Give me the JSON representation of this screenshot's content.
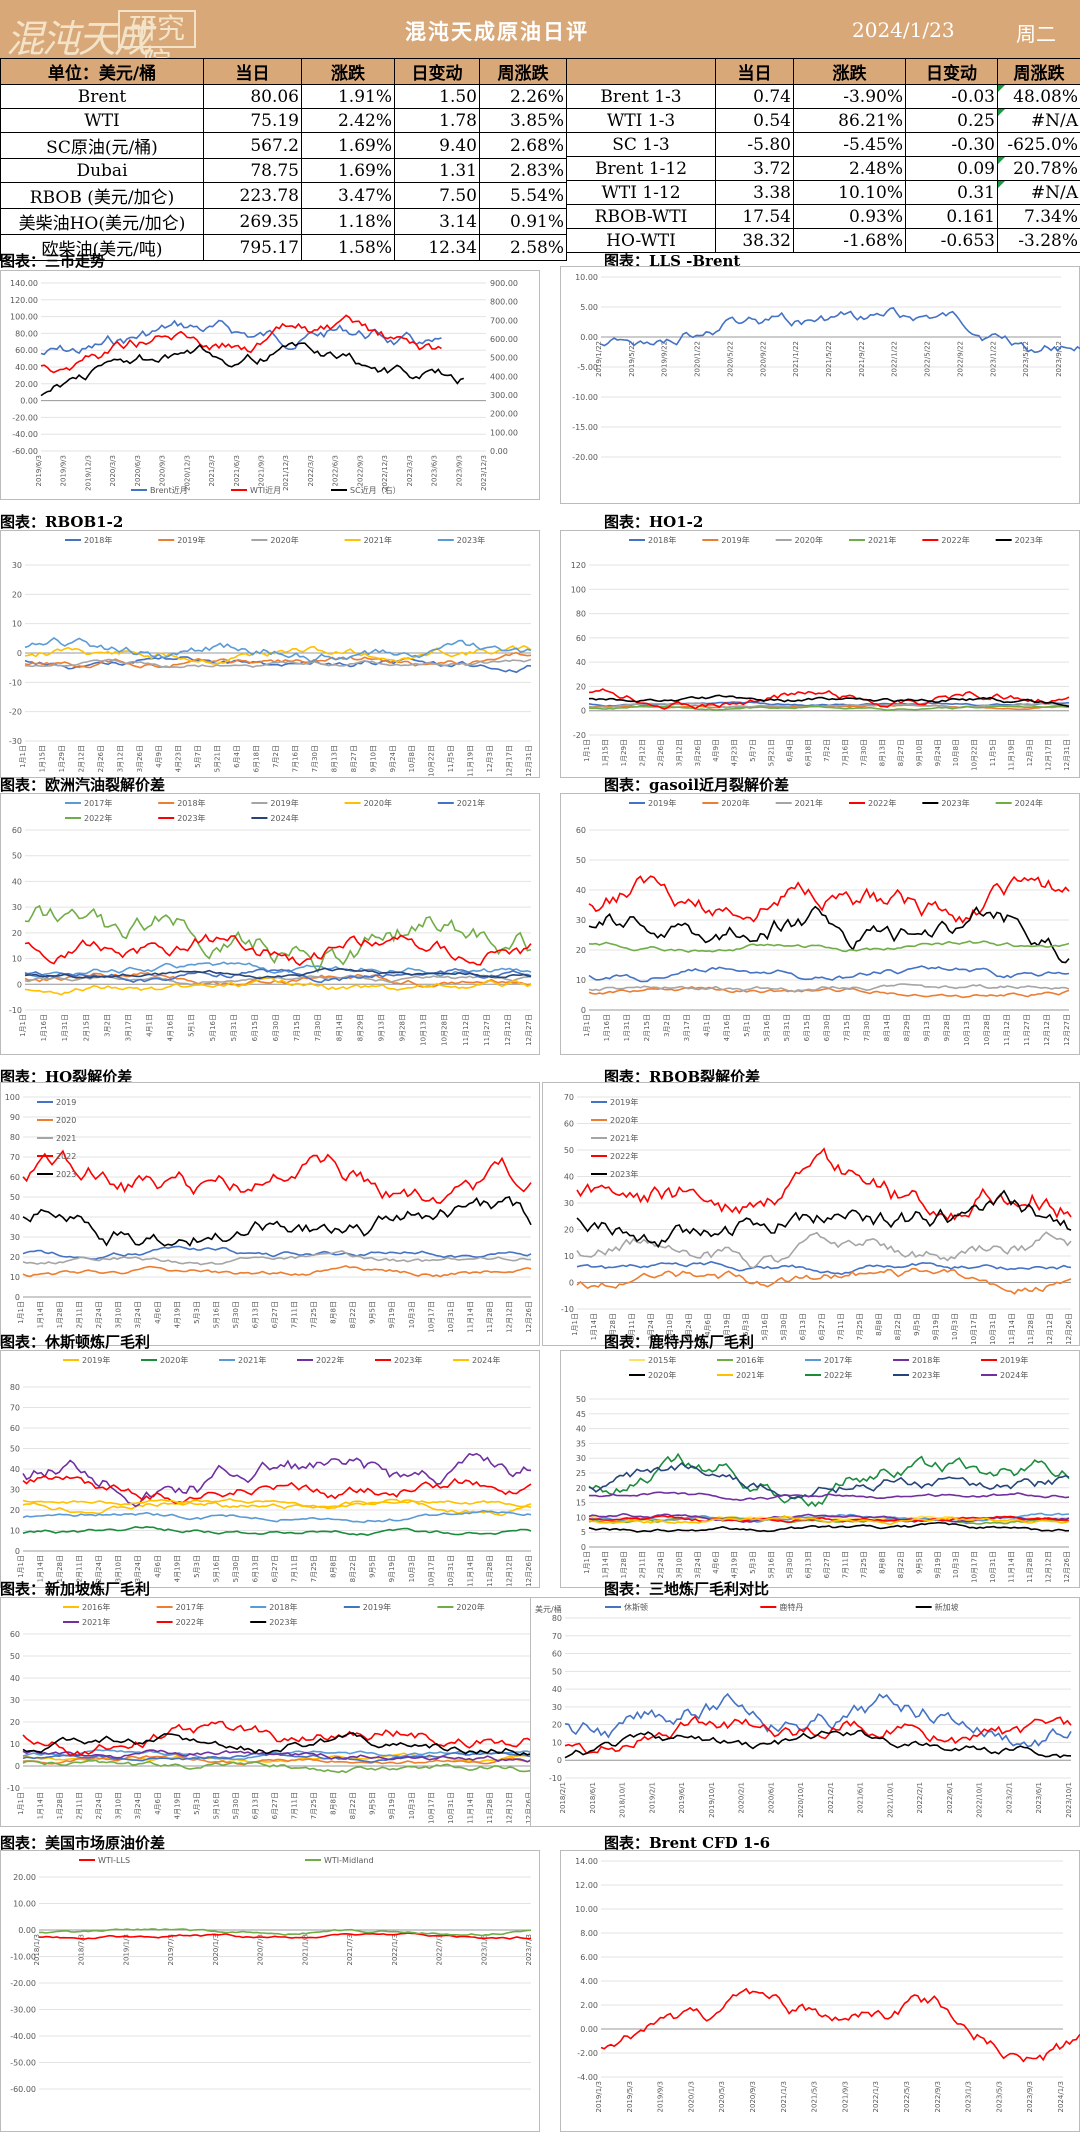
{
  "header": {
    "logo_text": "混沌天成研究院",
    "title": "混沌天成原油日评",
    "date": "2024/1/23",
    "weekday": "周二"
  },
  "left_table": {
    "headers": [
      "单位：美元/桶",
      "当日",
      "涨跌",
      "日变动",
      "周涨跌"
    ],
    "rows": [
      [
        "Brent",
        "80.06",
        "1.91%",
        "1.50",
        "2.26%"
      ],
      [
        "WTI",
        "75.19",
        "2.42%",
        "1.78",
        "3.85%"
      ],
      [
        "SC原油(元/桶)",
        "567.2",
        "1.69%",
        "9.40",
        "2.68%"
      ],
      [
        "Dubai",
        "78.75",
        "1.69%",
        "1.31",
        "2.83%"
      ],
      [
        "RBOB (美元/加仑)",
        "223.78",
        "3.47%",
        "7.50",
        "5.54%"
      ],
      [
        "美柴油HO(美元/加仑)",
        "269.35",
        "1.18%",
        "3.14",
        "0.91%"
      ],
      [
        "欧柴油(美元/吨)",
        "795.17",
        "1.58%",
        "12.34",
        "2.58%"
      ]
    ]
  },
  "right_table": {
    "headers": [
      "",
      "当日",
      "涨跌",
      "日变动",
      "周涨跌"
    ],
    "rows": [
      [
        "Brent 1-3",
        "0.74",
        "-3.90%",
        "-0.03",
        "48.08%"
      ],
      [
        "WTI 1-3",
        "0.54",
        "86.21%",
        "0.25",
        "#N/A"
      ],
      [
        "SC 1-3",
        "-5.80",
        "-5.45%",
        "-0.30",
        "-625.0%"
      ],
      [
        "Brent 1-12",
        "3.72",
        "2.48%",
        "0.09",
        "20.78%"
      ],
      [
        "WTI 1-12",
        "3.38",
        "10.10%",
        "0.31",
        "#N/A"
      ],
      [
        "RBOB-WTI",
        "17.54",
        "0.93%",
        "0.161",
        "7.34%"
      ],
      [
        "HO-WTI",
        "38.32",
        "-1.68%",
        "-0.653",
        "-3.28%"
      ]
    ]
  },
  "colors": {
    "header_bg": "#d9a878",
    "blue": "#4472c4",
    "red": "#ff0000",
    "black": "#000000",
    "gray": "#a5a5a5",
    "orange": "#ed7d31",
    "yellow": "#ffc000",
    "green": "#70ad47",
    "lightblue": "#5b9bd5",
    "darkgreen": "#1a8c3c",
    "purple": "#7030a0",
    "navy": "#264478"
  },
  "charts": [
    {
      "key": "sanshi",
      "type": "line",
      "caption": "图表：三市走势",
      "y_ticks": [
        "140.00",
        "120.00",
        "100.00",
        "80.00",
        "60.00",
        "40.00",
        "20.00",
        "0.00",
        "-20.00",
        "-40.00",
        "-60.00"
      ],
      "y2_ticks": [
        "900.00",
        "800.00",
        "700.00",
        "600.00",
        "500.00",
        "400.00",
        "300.00",
        "200.00",
        "100.00",
        "0.00"
      ],
      "x_ticks": [
        "2019/6/3",
        "2019/9/3",
        "2019/12/3",
        "2020/3/3",
        "2020/6/3",
        "2020/9/3",
        "2020/12/3",
        "2021/3/3",
        "2021/6/3",
        "2021/9/3",
        "2021/12/3",
        "2022/3/3",
        "2022/6/3",
        "2022/9/3",
        "2022/12/3",
        "2023/3/3",
        "2023/6/3",
        "2023/9/3",
        "2023/12/3"
      ],
      "legend": [
        "Brent近月",
        "WTI近月",
        "SC近月（右）"
      ],
      "legend_pos": "bottom",
      "ylim": [
        -60,
        140
      ],
      "y2lim": [
        0,
        900
      ]
    },
    {
      "key": "lls",
      "type": "line",
      "caption": "图表：LLS -Brent",
      "y_ticks": [
        "10.00",
        "5.00",
        "0.00",
        "-5.00",
        "-10.00",
        "-15.00",
        "-20.00"
      ],
      "x_ticks": [
        "2019/1/22",
        "2019/5/22",
        "2019/9/22",
        "2020/1/22",
        "2020/5/22",
        "2020/9/22",
        "2021/1/22",
        "2021/5/22",
        "2021/9/22",
        "2022/1/22",
        "2022/5/22",
        "2022/9/22",
        "2023/1/22",
        "2023/5/22",
        "2023/9/22"
      ],
      "legend": [],
      "ylim": [
        -20,
        10
      ]
    },
    {
      "key": "rbob12",
      "type": "line",
      "caption": "图表：RBOB1-2",
      "y_ticks": [
        "30",
        "20",
        "10",
        "0",
        "-10",
        "-20",
        "-30"
      ],
      "x_ticks": [
        "1月1日",
        "1月15日",
        "1月29日",
        "2月12日",
        "2月26日",
        "3月12日",
        "3月26日",
        "4月9日",
        "4月23日",
        "5月7日",
        "5月21日",
        "6月4日",
        "6月18日",
        "7月2日",
        "7月16日",
        "7月30日",
        "8月13日",
        "8月27日",
        "9月10日",
        "9月24日",
        "10月8日",
        "10月22日",
        "11月5日",
        "11月19日",
        "12月3日",
        "12月17日",
        "12月31日"
      ],
      "legend": [
        "2018年",
        "2019年",
        "2020年",
        "2021年",
        "2023年"
      ],
      "legend_pos": "top",
      "ylim": [
        -30,
        30
      ]
    },
    {
      "key": "ho12",
      "type": "line",
      "caption": "图表：HO1-2",
      "y_ticks": [
        "120",
        "100",
        "80",
        "60",
        "40",
        "20",
        "0",
        "-20"
      ],
      "x_ticks": [
        "1月1日",
        "1月15日",
        "1月29日",
        "2月12日",
        "2月26日",
        "3月12日",
        "3月26日",
        "4月9日",
        "4月23日",
        "5月7日",
        "5月21日",
        "6月4日",
        "6月18日",
        "7月2日",
        "7月16日",
        "7月30日",
        "8月13日",
        "8月27日",
        "9月10日",
        "9月24日",
        "10月8日",
        "10月22日",
        "11月5日",
        "11月19日",
        "12月3日",
        "12月17日",
        "12月31日"
      ],
      "legend": [
        "2018年",
        "2019年",
        "2020年",
        "2021年",
        "2022年",
        "2023年"
      ],
      "legend_pos": "top",
      "ylim": [
        -20,
        120
      ]
    },
    {
      "key": "euqy",
      "type": "line",
      "caption": "图表：欧洲汽油裂解价差",
      "y_ticks": [
        "60",
        "50",
        "40",
        "30",
        "20",
        "10",
        "0",
        "-10"
      ],
      "x_ticks": [
        "1月1日",
        "1月16日",
        "1月31日",
        "2月15日",
        "3月2日",
        "3月17日",
        "4月1日",
        "4月16日",
        "5月1日",
        "5月16日",
        "5月31日",
        "6月15日",
        "6月30日",
        "7月15日",
        "7月30日",
        "8月14日",
        "8月29日",
        "9月13日",
        "9月28日",
        "10月13日",
        "10月28日",
        "11月12日",
        "11月27日",
        "12月12日",
        "12月27日"
      ],
      "legend": [
        "2017年",
        "2018年",
        "2019年",
        "2020年",
        "2021年",
        "2022年",
        "2023年",
        "2024年"
      ],
      "legend_pos": "top",
      "ylim": [
        -10,
        60
      ]
    },
    {
      "key": "gasoil",
      "type": "line",
      "caption": "图表：gasoil近月裂解价差",
      "y_ticks": [
        "60",
        "50",
        "40",
        "30",
        "20",
        "10",
        "0"
      ],
      "x_ticks": [
        "1月1日",
        "1月16日",
        "1月31日",
        "2月15日",
        "3月2日",
        "3月17日",
        "4月1日",
        "4月16日",
        "5月1日",
        "5月16日",
        "5月31日",
        "6月15日",
        "6月30日",
        "7月15日",
        "7月30日",
        "8月14日",
        "8月29日",
        "9月13日",
        "9月28日",
        "10月13日",
        "10月28日",
        "11月12日",
        "11月27日",
        "12月12日",
        "12月27日"
      ],
      "legend": [
        "2019年",
        "2020年",
        "2021年",
        "2022年",
        "2023年",
        "2024年"
      ],
      "legend_pos": "top",
      "ylim": [
        0,
        60
      ]
    },
    {
      "key": "ho",
      "type": "line",
      "caption": "图表：HO裂解价差",
      "y_ticks": [
        "100",
        "90",
        "80",
        "70",
        "60",
        "50",
        "40",
        "30",
        "20",
        "10",
        "0"
      ],
      "x_ticks": [
        "1月1日",
        "1月14日",
        "1月28日",
        "2月11日",
        "2月24日",
        "3月10日",
        "3月24日",
        "4月6日",
        "4月19日",
        "5月3日",
        "5月16日",
        "5月30日",
        "6月13日",
        "6月27日",
        "7月11日",
        "7月25日",
        "8月8日",
        "8月22日",
        "9月5日",
        "9月19日",
        "10月3日",
        "10月17日",
        "10月31日",
        "11月14日",
        "11月28日",
        "12月12日",
        "12月26日"
      ],
      "legend": [
        "2019",
        "2020",
        "2021",
        "2022",
        "2023"
      ],
      "legend_pos": "left",
      "ylim": [
        0,
        100
      ]
    },
    {
      "key": "rbob",
      "type": "line",
      "caption": "图表：RBOB裂解价差",
      "y_ticks": [
        "70",
        "60",
        "50",
        "40",
        "30",
        "20",
        "10",
        "0",
        "-10"
      ],
      "x_ticks": [
        "1月1日",
        "1月14日",
        "1月28日",
        "2月11日",
        "2月24日",
        "3月10日",
        "3月24日",
        "4月6日",
        "4月19日",
        "5月3日",
        "5月16日",
        "5月30日",
        "6月13日",
        "6月27日",
        "7月11日",
        "7月25日",
        "8月8日",
        "8月22日",
        "9月5日",
        "9月19日",
        "10月3日",
        "10月17日",
        "10月31日",
        "11月14日",
        "11月28日",
        "12月12日",
        "12月26日"
      ],
      "legend": [
        "2019年",
        "2020年",
        "2021年",
        "2022年",
        "2023年"
      ],
      "legend_pos": "left",
      "ylim": [
        -10,
        70
      ]
    },
    {
      "key": "houston",
      "type": "line",
      "caption": "图表：休斯顿炼厂毛利",
      "y_ticks": [
        "80",
        "70",
        "60",
        "50",
        "40",
        "30",
        "20",
        "10",
        "0"
      ],
      "x_ticks": [
        "1月1日",
        "1月14日",
        "1月28日",
        "2月11日",
        "2月24日",
        "3月10日",
        "3月24日",
        "4月6日",
        "4月19日",
        "5月3日",
        "5月16日",
        "5月30日",
        "6月13日",
        "6月27日",
        "7月11日",
        "7月25日",
        "8月8日",
        "8月22日",
        "9月5日",
        "9月19日",
        "10月3日",
        "10月17日",
        "10月31日",
        "11月14日",
        "11月28日",
        "12月12日",
        "12月26日"
      ],
      "legend": [
        "2019年",
        "2020年",
        "2021年",
        "2022年",
        "2023年",
        "2024年"
      ],
      "legend_pos": "top",
      "ylim": [
        0,
        80
      ]
    },
    {
      "key": "rotterdam",
      "type": "line",
      "caption": "图表：鹿特丹炼厂毛利",
      "y_ticks": [
        "50",
        "45",
        "40",
        "35",
        "30",
        "25",
        "20",
        "15",
        "10",
        "5",
        "0"
      ],
      "x_ticks": [
        "1月1日",
        "1月14日",
        "1月28日",
        "2月11日",
        "2月24日",
        "3月10日",
        "3月24日",
        "4月6日",
        "4月19日",
        "5月3日",
        "5月16日",
        "5月30日",
        "6月13日",
        "6月27日",
        "7月11日",
        "7月25日",
        "8月8日",
        "8月22日",
        "9月5日",
        "9月19日",
        "10月3日",
        "10月17日",
        "10月31日",
        "11月14日",
        "11月28日",
        "12月12日",
        "12月26日"
      ],
      "legend": [
        "2015年",
        "2016年",
        "2017年",
        "2018年",
        "2019年",
        "2020年",
        "2021年",
        "2022年",
        "2023年",
        "2024年"
      ],
      "legend_pos": "top",
      "ylim": [
        0,
        50
      ]
    },
    {
      "key": "singapore",
      "type": "line",
      "caption": "图表：新加坡炼厂毛利",
      "y_ticks": [
        "60",
        "50",
        "40",
        "30",
        "20",
        "10",
        "0",
        "-10"
      ],
      "x_ticks": [
        "1月1日",
        "1月14日",
        "1月28日",
        "2月11日",
        "2月24日",
        "3月10日",
        "3月24日",
        "4月6日",
        "4月19日",
        "5月3日",
        "5月16日",
        "5月30日",
        "6月13日",
        "6月27日",
        "7月11日",
        "7月25日",
        "8月8日",
        "8月22日",
        "9月5日",
        "9月19日",
        "10月3日",
        "10月17日",
        "10月31日",
        "11月14日",
        "11月28日",
        "12月12日",
        "12月26日"
      ],
      "legend": [
        "2016年",
        "2017年",
        "2018年",
        "2019年",
        "2020年",
        "2021年",
        "2022年",
        "2023年"
      ],
      "legend_pos": "top",
      "ylim": [
        -10,
        60
      ]
    },
    {
      "key": "sandi",
      "type": "line",
      "caption": "图表：三地炼厂毛利对比",
      "unit": "美元/桶",
      "y_ticks": [
        "80",
        "70",
        "60",
        "50",
        "40",
        "30",
        "20",
        "10",
        "0",
        "-10"
      ],
      "x_ticks": [
        "2018/2/1",
        "2018/6/1",
        "2018/10/1",
        "2019/2/1",
        "2019/6/1",
        "2019/10/1",
        "2020/2/1",
        "2020/6/1",
        "2020/10/1",
        "2021/2/1",
        "2021/6/1",
        "2021/10/1",
        "2022/2/1",
        "2022/6/1",
        "2022/10/1",
        "2023/2/1",
        "2023/6/1",
        "2023/10/1"
      ],
      "legend": [
        "休斯顿",
        "鹿特丹",
        "新加坡"
      ],
      "legend_pos": "top",
      "ylim": [
        -10,
        80
      ]
    },
    {
      "key": "usspread",
      "type": "line",
      "caption": "图表：美国市场原油价差",
      "y_ticks": [
        "20.00",
        "10.00",
        "0.00",
        "-10.00",
        "-20.00",
        "-30.00",
        "-40.00",
        "-50.00",
        "-60.00"
      ],
      "x_ticks": [
        "2018/1/3",
        "2018/7/3",
        "2019/1/3",
        "2019/7/3",
        "2020/1/3",
        "2020/7/3",
        "2021/1/3",
        "2021/7/3",
        "2022/1/3",
        "2022/7/3",
        "2023/1/3",
        "2023/7/3"
      ],
      "legend": [
        "WTI-LLS",
        "WTI-Midland"
      ],
      "legend_pos": "top",
      "ylim": [
        -60,
        20
      ]
    },
    {
      "key": "cfd",
      "type": "line",
      "caption": "图表：Brent CFD 1-6",
      "y_ticks": [
        "14.00",
        "12.00",
        "10.00",
        "8.00",
        "6.00",
        "4.00",
        "2.00",
        "0.00",
        "-2.00",
        "-4.00"
      ],
      "x_ticks": [
        "2019/1/3",
        "2019/5/3",
        "2019/9/3",
        "2020/1/3",
        "2020/5/3",
        "2020/9/3",
        "2021/1/3",
        "2021/5/3",
        "2021/9/3",
        "2022/1/3",
        "2022/5/3",
        "2022/9/3",
        "2023/1/3",
        "2023/5/3",
        "2023/9/3",
        "2024/1/3"
      ],
      "legend": [],
      "ylim": [
        -4,
        14
      ]
    }
  ]
}
